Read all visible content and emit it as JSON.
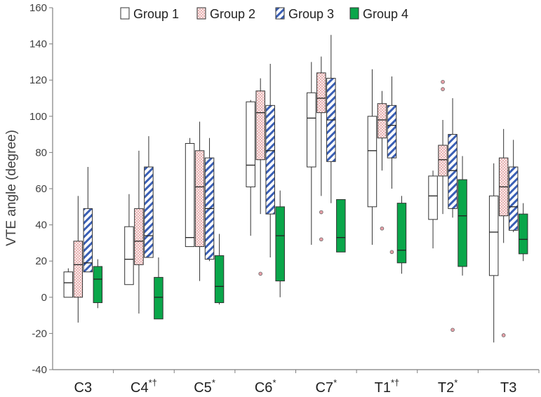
{
  "chart_data": {
    "type": "boxplot",
    "ylabel": "VTE angle (degree)",
    "ylim": [
      -40,
      160
    ],
    "yticks": [
      -40,
      -20,
      0,
      20,
      40,
      60,
      80,
      100,
      120,
      140,
      160
    ],
    "categories": [
      {
        "name": "C3",
        "marks": ""
      },
      {
        "name": "C4",
        "marks": "*†"
      },
      {
        "name": "C5",
        "marks": "*"
      },
      {
        "name": "C6",
        "marks": "*"
      },
      {
        "name": "C7",
        "marks": "*"
      },
      {
        "name": "T1",
        "marks": "*†"
      },
      {
        "name": "T2",
        "marks": "*"
      },
      {
        "name": "T3",
        "marks": ""
      }
    ],
    "legend_position": "top",
    "series": [
      {
        "name": "Group 1",
        "pattern": "white",
        "boxes": [
          {
            "whislo": 0,
            "q1": 0,
            "med": 8,
            "q3": 14,
            "whishi": 16,
            "fliers": []
          },
          {
            "whislo": 7,
            "q1": 7,
            "med": 21,
            "q3": 39,
            "whishi": 57,
            "fliers": []
          },
          {
            "whislo": 28,
            "q1": 28,
            "med": 33,
            "q3": 85,
            "whishi": 88,
            "fliers": []
          },
          {
            "whislo": 34,
            "q1": 61,
            "med": 73,
            "q3": 108,
            "whishi": 109,
            "fliers": []
          },
          {
            "whislo": 29,
            "q1": 72,
            "med": 99,
            "q3": 113,
            "whishi": 130,
            "fliers": []
          },
          {
            "whislo": 29,
            "q1": 50,
            "med": 81,
            "q3": 100,
            "whishi": 126,
            "fliers": []
          },
          {
            "whislo": 27,
            "q1": 43,
            "med": 56,
            "q3": 67,
            "whishi": 70,
            "fliers": []
          },
          {
            "whislo": -25,
            "q1": 12,
            "med": 36,
            "q3": 56,
            "whishi": 74,
            "fliers": []
          }
        ]
      },
      {
        "name": "Group 2",
        "pattern": "dotted-pink",
        "boxes": [
          {
            "whislo": -14,
            "q1": 0,
            "med": 18,
            "q3": 31,
            "whishi": 56,
            "fliers": []
          },
          {
            "whislo": -9,
            "q1": 18,
            "med": 31,
            "q3": 49,
            "whishi": 81,
            "fliers": []
          },
          {
            "whislo": 9,
            "q1": 28,
            "med": 61,
            "q3": 81,
            "whishi": 97,
            "fliers": []
          },
          {
            "whislo": 46,
            "q1": 76,
            "med": 102,
            "q3": 114,
            "whishi": 121,
            "fliers": [
              13
            ]
          },
          {
            "whislo": 56,
            "q1": 102,
            "med": 110,
            "q3": 124,
            "whishi": 133,
            "fliers": [
              47,
              32
            ]
          },
          {
            "whislo": 70,
            "q1": 88,
            "med": 98,
            "q3": 107,
            "whishi": 114,
            "fliers": [
              38
            ]
          },
          {
            "whislo": 46,
            "q1": 67,
            "med": 76,
            "q3": 84,
            "whishi": 98,
            "fliers": [
              119,
              115
            ]
          },
          {
            "whislo": 30,
            "q1": 45,
            "med": 61,
            "q3": 77,
            "whishi": 93,
            "fliers": [
              -21
            ]
          }
        ]
      },
      {
        "name": "Group 3",
        "pattern": "blue-hatched",
        "boxes": [
          {
            "whislo": 14,
            "q1": 14,
            "med": 19,
            "q3": 49,
            "whishi": 72,
            "fliers": []
          },
          {
            "whislo": 22,
            "q1": 22,
            "med": 34,
            "q3": 72,
            "whishi": 89,
            "fliers": []
          },
          {
            "whislo": 20,
            "q1": 21,
            "med": 49,
            "q3": 77,
            "whishi": 88,
            "fliers": []
          },
          {
            "whislo": 22,
            "q1": 46,
            "med": 81,
            "q3": 106,
            "whishi": 129,
            "fliers": []
          },
          {
            "whislo": 52,
            "q1": 75,
            "med": 98,
            "q3": 121,
            "whishi": 145,
            "fliers": []
          },
          {
            "whislo": 60,
            "q1": 77,
            "med": 95,
            "q3": 106,
            "whishi": 122,
            "fliers": [
              25
            ]
          },
          {
            "whislo": 44,
            "q1": 49,
            "med": 70,
            "q3": 90,
            "whishi": 110,
            "fliers": [
              -18
            ]
          },
          {
            "whislo": 36,
            "q1": 37,
            "med": 50,
            "q3": 72,
            "whishi": 87,
            "fliers": []
          }
        ]
      },
      {
        "name": "Group 4",
        "pattern": "green",
        "boxes": [
          {
            "whislo": -6,
            "q1": -3,
            "med": 10,
            "q3": 17,
            "whishi": 21,
            "fliers": []
          },
          {
            "whislo": -12,
            "q1": -12,
            "med": 0,
            "q3": 11,
            "whishi": 22,
            "fliers": []
          },
          {
            "whislo": -4,
            "q1": -3,
            "med": 6,
            "q3": 23,
            "whishi": 35,
            "fliers": []
          },
          {
            "whislo": 0,
            "q1": 9,
            "med": 34,
            "q3": 50,
            "whishi": 59,
            "fliers": []
          },
          {
            "whislo": 25,
            "q1": 25,
            "med": 33,
            "q3": 54,
            "whishi": 54,
            "fliers": []
          },
          {
            "whislo": 13,
            "q1": 19,
            "med": 26,
            "q3": 52,
            "whishi": 56,
            "fliers": []
          },
          {
            "whislo": 12,
            "q1": 17,
            "med": 45,
            "q3": 65,
            "whishi": 78,
            "fliers": []
          },
          {
            "whislo": 20,
            "q1": 24,
            "med": 32,
            "q3": 46,
            "whishi": 52,
            "fliers": []
          }
        ]
      }
    ]
  },
  "colors": {
    "group4_fill": "#0aa64a",
    "group2_dot": "#d98a8a",
    "group3_hatch": "#3a5fb5",
    "axis": "#7f7f7f",
    "flier_fill": "#e8a0a8"
  }
}
